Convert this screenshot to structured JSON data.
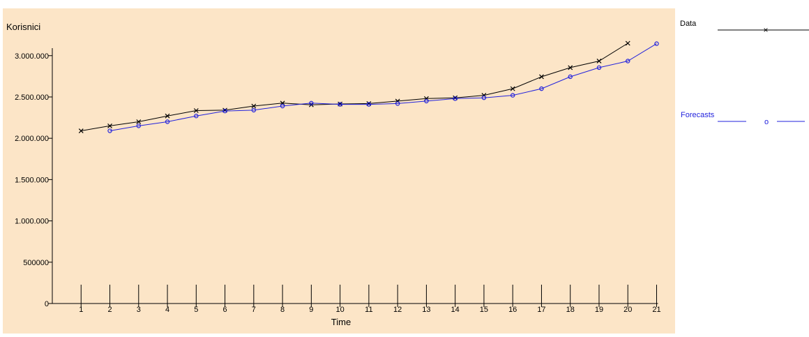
{
  "chart_data": {
    "type": "line",
    "ylabel": "Korisnici",
    "xlabel": "Time",
    "background_color": "#fce5c7",
    "x_ticks": [
      1,
      2,
      3,
      4,
      5,
      6,
      7,
      8,
      9,
      10,
      11,
      12,
      13,
      14,
      15,
      16,
      17,
      18,
      19,
      20,
      21
    ],
    "y_ticks": [
      0,
      500000,
      1000000,
      1500000,
      2000000,
      2500000,
      3000000
    ],
    "y_tick_labels": [
      "0",
      "500000",
      "1.000.000",
      "1.500.000",
      "2.000.000",
      "2.500.000",
      "3.000.000"
    ],
    "xlim": [
      0,
      21
    ],
    "ylim": [
      0,
      3150000
    ],
    "series": [
      {
        "name": "Data",
        "color": "#000000",
        "marker": "x",
        "x": [
          1,
          2,
          3,
          4,
          5,
          6,
          7,
          8,
          9,
          10,
          11,
          12,
          13,
          14,
          15,
          16,
          17,
          18,
          19,
          20
        ],
        "values": [
          2090000,
          2150000,
          2200000,
          2270000,
          2335000,
          2340000,
          2390000,
          2425000,
          2405000,
          2415000,
          2420000,
          2450000,
          2480000,
          2490000,
          2520000,
          2600000,
          2745000,
          2855000,
          2935000,
          3150000
        ]
      },
      {
        "name": "Forecasts",
        "color": "#2222dd",
        "marker": "o",
        "x": [
          2,
          3,
          4,
          5,
          6,
          7,
          8,
          9,
          10,
          11,
          12,
          13,
          14,
          15,
          16,
          17,
          18,
          19,
          20,
          21
        ],
        "values": [
          2090000,
          2150000,
          2200000,
          2270000,
          2330000,
          2340000,
          2390000,
          2425000,
          2410000,
          2410000,
          2420000,
          2450000,
          2480000,
          2490000,
          2520000,
          2600000,
          2745000,
          2855000,
          2935000,
          3145000
        ]
      }
    ],
    "legend": {
      "position": "right",
      "entries": [
        {
          "label": "Data",
          "marker_glyph": "×"
        },
        {
          "label": "Forecasts",
          "marker_glyph": "o"
        }
      ]
    }
  }
}
